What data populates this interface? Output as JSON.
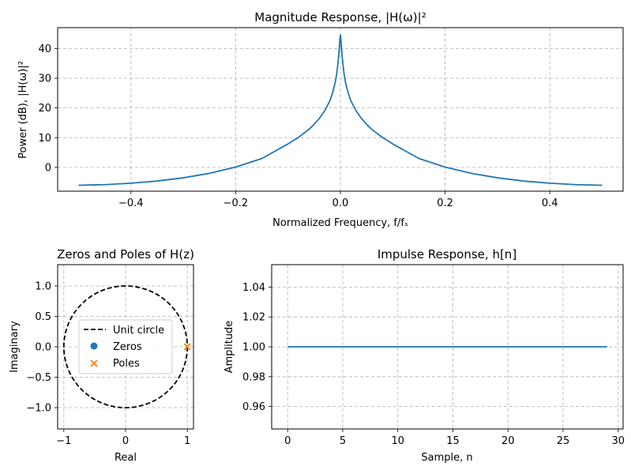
{
  "chart_data": [
    {
      "id": "magnitude",
      "type": "line",
      "title": "Magnitude Response, |H(ω)|²",
      "xlabel": "Normalized Frequency, f/fₛ",
      "ylabel": "Power (dB), |H(ω)|²",
      "xlim": [
        -0.54,
        0.54
      ],
      "ylim": [
        -8,
        47
      ],
      "xticks": [
        -0.4,
        -0.2,
        0.0,
        0.2,
        0.4
      ],
      "xtick_labels": [
        "−0.4",
        "−0.2",
        "0.0",
        "0.2",
        "0.4"
      ],
      "yticks": [
        0,
        10,
        20,
        30,
        40
      ],
      "ytick_labels": [
        "0",
        "10",
        "20",
        "30",
        "40"
      ],
      "grid": true,
      "series": [
        {
          "name": "|H(ω)|²",
          "color": "#1f77b4",
          "x": [
            -0.5,
            -0.45,
            -0.4,
            -0.35,
            -0.3,
            -0.25,
            -0.2,
            -0.15,
            -0.1,
            -0.08,
            -0.06,
            -0.05,
            -0.04,
            -0.03,
            -0.02,
            -0.015,
            -0.01,
            -0.007,
            -0.005,
            -0.003,
            -0.002,
            -0.001,
            0.0,
            0.001,
            0.002,
            0.003,
            0.005,
            0.007,
            0.01,
            0.015,
            0.02,
            0.03,
            0.04,
            0.05,
            0.06,
            0.08,
            0.1,
            0.15,
            0.2,
            0.25,
            0.3,
            0.35,
            0.4,
            0.45,
            0.5
          ],
          "y": [
            -6.0,
            -5.8,
            -5.3,
            -4.6,
            -3.5,
            -2.0,
            0.1,
            3.0,
            7.9,
            10.1,
            12.8,
            14.5,
            16.5,
            19.0,
            22.4,
            25.0,
            28.4,
            31.5,
            34.5,
            38.0,
            40.5,
            43.0,
            44.5,
            43.0,
            40.5,
            38.0,
            34.5,
            31.5,
            28.4,
            25.0,
            22.4,
            19.0,
            16.5,
            14.5,
            12.8,
            10.1,
            7.9,
            3.0,
            0.1,
            -2.0,
            -3.5,
            -4.6,
            -5.3,
            -5.8,
            -6.0
          ]
        }
      ]
    },
    {
      "id": "polezero",
      "type": "scatter",
      "title": "Zeros and Poles of H(z)",
      "xlabel": "Real",
      "ylabel": "Imaginary",
      "xlim": [
        -1.1,
        1.1
      ],
      "ylim": [
        -1.35,
        1.35
      ],
      "xticks": [
        -1,
        0,
        1
      ],
      "xtick_labels": [
        "−1",
        "0",
        "1"
      ],
      "yticks": [
        -1.0,
        -0.5,
        0.0,
        0.5,
        1.0
      ],
      "ytick_labels": [
        "−1.0",
        "−0.5",
        "0.0",
        "0.5",
        "1.0"
      ],
      "grid": true,
      "unit_circle": {
        "label": "Unit circle",
        "radius": 1,
        "color": "#000000"
      },
      "zeros": {
        "label": "Zeros",
        "color": "#1f77b4",
        "points": []
      },
      "poles": {
        "label": "Poles",
        "color": "#ff7f0e",
        "points": [
          [
            1.0,
            0.0
          ]
        ]
      },
      "legend": [
        "Unit circle",
        "Zeros",
        "Poles"
      ],
      "legend_position": "center"
    },
    {
      "id": "impulse",
      "type": "line",
      "title": "Impulse Response, h[n]",
      "xlabel": "Sample, n",
      "ylabel": "Amplitude",
      "xlim": [
        -1.45,
        30.45
      ],
      "ylim": [
        0.945,
        1.055
      ],
      "xticks": [
        0,
        5,
        10,
        15,
        20,
        25,
        30
      ],
      "xtick_labels": [
        "0",
        "5",
        "10",
        "15",
        "20",
        "25",
        "30"
      ],
      "yticks": [
        0.96,
        0.98,
        1.0,
        1.02,
        1.04
      ],
      "ytick_labels": [
        "0.96",
        "0.98",
        "1.00",
        "1.02",
        "1.04"
      ],
      "grid": true,
      "series": [
        {
          "name": "h[n]",
          "color": "#1f77b4",
          "x": [
            0,
            29
          ],
          "y": [
            1.0,
            1.0
          ]
        }
      ]
    }
  ]
}
